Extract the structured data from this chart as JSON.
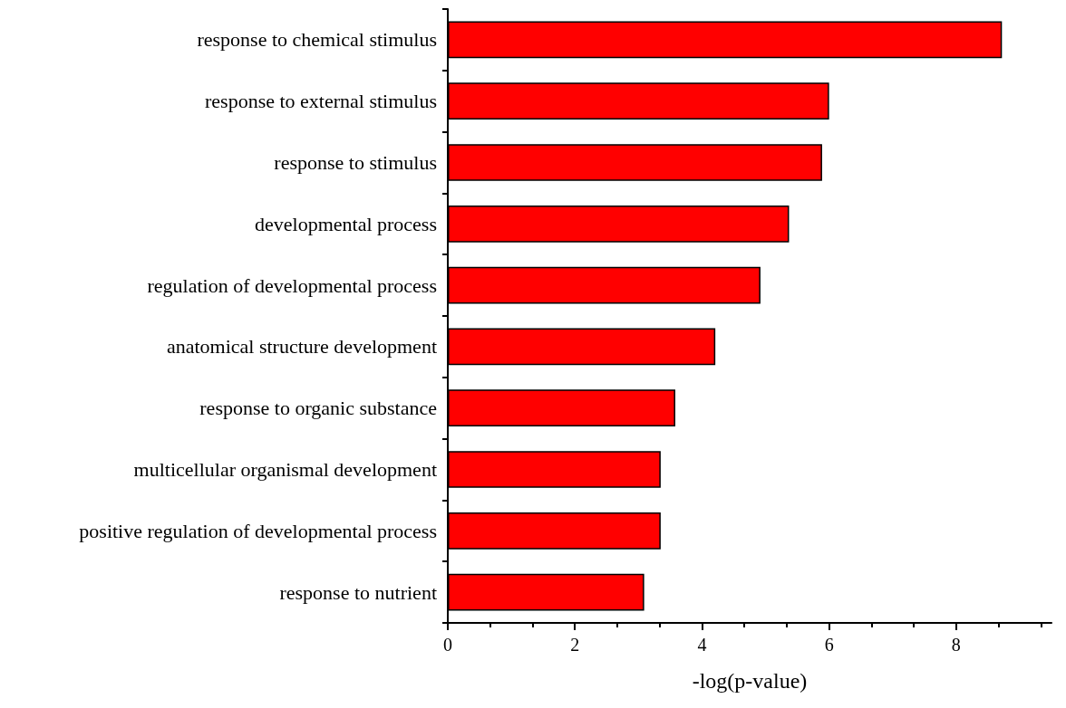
{
  "chart_data": {
    "type": "bar",
    "orientation": "horizontal",
    "xlabel": "-log(p-value)",
    "categories": [
      "response to chemical stimulus",
      "response to external stimulus",
      "response to stimulus",
      "developmental process",
      "regulation of developmental process",
      "anatomical structure development",
      "response to organic substance",
      "multicellular organismal development",
      "positive regulation of developmental process",
      "response to nutrient"
    ],
    "values": [
      8.72,
      6.0,
      5.89,
      5.37,
      4.92,
      4.21,
      3.58,
      3.35,
      3.35,
      3.09
    ],
    "color": "#ff0000",
    "xlim": [
      0,
      9.5
    ],
    "xticks": [
      0,
      2,
      4,
      6,
      8
    ],
    "grid": false
  }
}
